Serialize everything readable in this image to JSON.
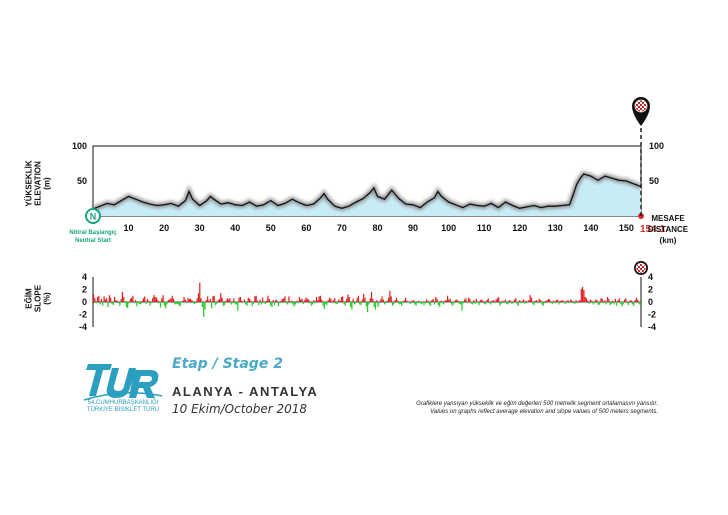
{
  "chart_data": [
    {
      "type": "area",
      "title": "",
      "ylabel": "YÜKSEKLİK ELEVATION (m)",
      "xlabel": "MESAFE DISTANCE (km)",
      "xlabel_lines": [
        "MESAFE",
        "DISTANCE",
        "(km)"
      ],
      "ylabel_lines": [
        "YÜKSEKLİK",
        "ELEVATION",
        "(m)"
      ],
      "xlim": [
        0,
        154.1
      ],
      "ylim": [
        0,
        100
      ],
      "yticks": [
        50,
        100
      ],
      "xticks": [
        10,
        20,
        30,
        40,
        50,
        60,
        70,
        80,
        90,
        100,
        110,
        120,
        130,
        140,
        150
      ],
      "end_label": "154.1",
      "start_marker": "N",
      "start_label": "Nötral Başlangıç",
      "start_label_en": "Neutral Start",
      "colors": {
        "fill": "#c8ecf6",
        "line": "#111111",
        "end": "#d32f2f",
        "start": "#19a37e"
      },
      "x": [
        0,
        2,
        4,
        6,
        8,
        10,
        12,
        14,
        16,
        18,
        20,
        22,
        24,
        26,
        27,
        28,
        30,
        32,
        33,
        34,
        36,
        38,
        40,
        42,
        44,
        46,
        48,
        50,
        52,
        54,
        56,
        58,
        60,
        62,
        64,
        65,
        66,
        68,
        70,
        72,
        74,
        76,
        78,
        79,
        80,
        82,
        84,
        86,
        88,
        90,
        92,
        94,
        96,
        97,
        98,
        100,
        102,
        104,
        106,
        108,
        110,
        112,
        114,
        116,
        118,
        120,
        122,
        124,
        126,
        128,
        130,
        132,
        134,
        135,
        136,
        137,
        138,
        140,
        142,
        144,
        146,
        148,
        150,
        152,
        154.1
      ],
      "y": [
        10,
        14,
        18,
        16,
        22,
        28,
        24,
        20,
        17,
        15,
        16,
        18,
        14,
        22,
        35,
        24,
        15,
        22,
        28,
        24,
        17,
        19,
        16,
        15,
        20,
        14,
        16,
        22,
        15,
        18,
        24,
        19,
        15,
        17,
        26,
        32,
        24,
        14,
        11,
        14,
        20,
        25,
        34,
        40,
        28,
        24,
        37,
        25,
        17,
        16,
        12,
        20,
        26,
        35,
        28,
        20,
        16,
        12,
        17,
        15,
        14,
        18,
        12,
        20,
        15,
        11,
        13,
        15,
        12,
        14,
        14,
        15,
        16,
        30,
        45,
        54,
        60,
        57,
        51,
        57,
        54,
        51,
        50,
        46,
        42
      ]
    },
    {
      "type": "bar",
      "title": "",
      "ylabel": "EĞİM SLOPE (%)",
      "ylabel_lines": [
        "EĞİM",
        "SLOPE",
        "(%)"
      ],
      "ylim": [
        -4,
        4
      ],
      "yticks": [
        4,
        2,
        0,
        -2,
        -4
      ],
      "xlim": [
        0,
        154.1
      ],
      "segment_km": 0.5,
      "colors": {
        "positive": "#e02020",
        "negative": "#22cc22"
      },
      "values": [
        1.2,
        0.6,
        -0.2,
        0.8,
        1.0,
        -0.4,
        0.5,
        -0.6,
        0.9,
        0.4,
        0.6,
        -0.8,
        1.1,
        0.7,
        -0.3,
        -0.5,
        0.8,
        0.3,
        0.2,
        -0.2,
        -0.6,
        0.5,
        1.6,
        0.8,
        -0.2,
        -0.8,
        -1.0,
        -0.2,
        0.5,
        0.7,
        1.0,
        -0.2,
        0.3,
        -0.7,
        -0.2,
        -0.3,
        -0.4,
        0.2,
        0.6,
        0.9,
        -0.3,
        0.5,
        0.2,
        -0.6,
        -0.2,
        0.6,
        1.1,
        0.8,
        0.7,
        0.3,
        -0.2,
        -0.9,
        0.6,
        1.1,
        -0.6,
        -1.0,
        -0.4,
        0.3,
        0.4,
        0.6,
        1.0,
        0.5,
        -0.4,
        -0.3,
        -0.3,
        -0.5,
        -0.7,
        -0.1,
        0.2,
        0.8,
        0.4,
        -0.2,
        0.6,
        0.5,
        0.5,
        0.3,
        -0.2,
        -0.3,
        -0.2,
        0.6,
        1.4,
        3.1,
        0.6,
        -0.8,
        -2.4,
        -1.2,
        0.3,
        0.9,
        0.2,
        0.5,
        -1.0,
        0.9,
        1.0,
        -0.5,
        -0.3,
        0.3,
        0.5,
        1.4,
        0.7,
        -0.6,
        -0.5,
        0.2,
        0.6,
        0.4,
        0.6,
        -0.4,
        -0.2,
        0.6,
        -0.4,
        -0.4,
        -1.4,
        0.7,
        0.8,
        0.2,
        -0.1,
        0.4,
        -0.4,
        -0.6,
        0.7,
        0.5,
        0.2,
        -0.7,
        -0.3,
        0.9,
        1.0,
        0.2,
        -0.5,
        0.4,
        -0.4,
        0.7,
        -0.2,
        -0.3,
        0.2,
        1.0,
        0.5,
        -0.6,
        -0.8,
        0.3,
        -0.5,
        0.4,
        0.2,
        -0.7,
        -0.2,
        0.2,
        0.5,
        0.6,
        0.9,
        -0.2,
        -0.4,
        0.9,
        -0.2,
        0.2,
        -0.4,
        -0.7,
        -0.4,
        0.2,
        -0.2,
        0.8,
        0.4,
        0.5,
        -0.3,
        0.3,
        0.7,
        0.5,
        0.4,
        -0.2,
        -0.6,
        -0.4,
        0.3,
        -0.2,
        0.8,
        0.3,
        0.9,
        1.0,
        0.4,
        -0.6,
        -1.1,
        -0.3,
        -0.5,
        0.3,
        0.7,
        0.5,
        -0.2,
        0.3,
        0.6,
        -0.3,
        -0.3,
        0.4,
        0.2,
        0.8,
        0.9,
        -0.3,
        -0.6,
        0.5,
        1.2,
        0.8,
        -0.8,
        -1.2,
        0.5,
        -0.4,
        -0.2,
        0.6,
        1.0,
        -0.4,
        -0.5,
        0.4,
        1.3,
        0.7,
        -0.7,
        -1.6,
        -0.4,
        0.6,
        1.6,
        0.5,
        -0.8,
        -1.2,
        0.3,
        -0.8,
        -0.2,
        0.4,
        0.9,
        0.4,
        -0.4,
        -0.2,
        0.2,
        0.7,
        1.8,
        0.9,
        -0.6,
        -0.4,
        0.3,
        0.7,
        0.2,
        -0.4,
        -0.3,
        -0.6,
        -0.2,
        0.3,
        0.7,
        0.2,
        -0.1,
        -0.2,
        -0.3,
        0.2,
        0.3,
        -0.4,
        -0.6,
        -0.2,
        0.2,
        -0.2,
        -0.4,
        -0.2,
        -0.5,
        -0.2,
        0.4,
        0.2,
        -0.4,
        -0.6,
        0.3,
        0.5,
        -0.4,
        0.8,
        0.5,
        -0.5,
        -0.8,
        0.2,
        -0.2,
        -0.4,
        0.2,
        0.3,
        1.0,
        0.4,
        0.5,
        -0.4,
        -0.6,
        -0.2,
        0.3,
        0.4,
        0.2,
        -0.3,
        -0.4,
        -1.4,
        -0.2,
        0.4,
        0.6,
        -0.2,
        0.7,
        0.5,
        -0.3,
        -0.4,
        0.3,
        -0.3,
        0.5,
        -0.2,
        -0.5,
        0.3,
        0.4,
        0.2,
        -0.3,
        -0.4,
        0.3,
        0.6,
        -0.2,
        -0.4,
        0.2,
        0.3,
        -0.2,
        0.4,
        0.6,
        0.8,
        -0.6,
        -0.3,
        0.2,
        -0.2,
        0.4,
        -0.3,
        -0.4,
        0.3,
        0.2,
        -0.3,
        -0.2,
        0.4,
        0.6,
        -0.4,
        -0.6,
        0.3,
        -0.2,
        0.2,
        0.4,
        -0.3,
        0.2,
        -0.2,
        0.3,
        1.1,
        0.7,
        -0.3,
        -0.5,
        0.2,
        0.3,
        -0.2,
        0.5,
        0.3,
        -0.4,
        -0.6,
        -0.2,
        0.2,
        0.3,
        0.5,
        0.4,
        -0.2,
        -0.3,
        0.2,
        -0.2,
        0.3,
        0.4,
        -0.4,
        0.2,
        0.2,
        0.3,
        -0.2,
        -0.3,
        0.2,
        0.3,
        -0.2,
        0.4,
        0.2,
        -0.2,
        -0.3,
        0.3,
        -0.2,
        0.2,
        0.3,
        2.1,
        2.4,
        1.9,
        0.8,
        0.6,
        0.2,
        -0.3,
        0.4,
        0.2,
        -0.4,
        -0.2,
        0.4,
        0.3,
        -0.5,
        -0.4,
        0.6,
        0.5,
        -0.2,
        0.3,
        -0.4,
        0.8,
        0.5,
        -0.5,
        -0.3,
        0.2,
        -0.4,
        0.5,
        -0.6,
        0.3,
        0.6,
        -0.3,
        -0.7,
        -0.4,
        0.4,
        0.6,
        -0.2,
        -0.5,
        0.2,
        0.3,
        -0.4,
        -0.6,
        0.3,
        0.7,
        0.4,
        -0.3,
        -0.5
      ]
    }
  ],
  "stage": {
    "title": "Etap / Stage 2",
    "route": "ALANYA - ANTALYA",
    "date": "10 Ekim/October 2018"
  },
  "logo": {
    "letters": "TUR",
    "line1": "54.CUMHURBAŞKANLIĞI",
    "line2": "TÜRKİYE BİSİKLET TURU",
    "color": "#2a9fc0"
  },
  "note": {
    "line1": "Grafiklere yansıyan yükseklik ve eğim değerleri 500 metrelik segment ortalamasını yansıtır.",
    "line2": "Values on graphs reflect average elevation and slope values of 500 meters segments."
  },
  "finish_icon": "finish-flag-pin-icon"
}
